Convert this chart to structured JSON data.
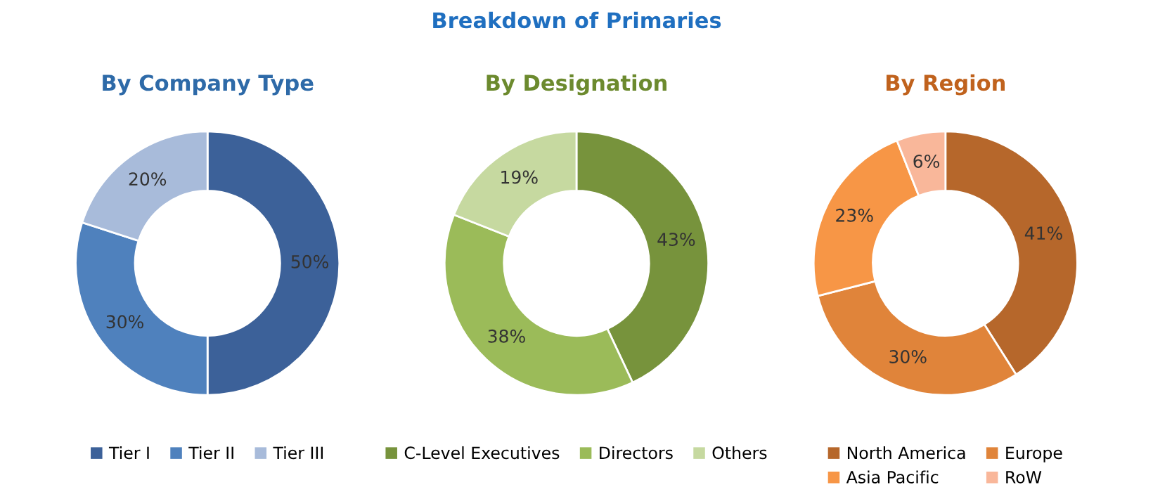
{
  "chart_data": [
    {
      "type": "donut",
      "title": "By Company Type",
      "annotations": [
        "Breakdown of Primaries"
      ],
      "categories": [
        "Tier I",
        "Tier II",
        "Tier III"
      ],
      "values": [
        50,
        30,
        20
      ],
      "value_labels": [
        "50%",
        "30%",
        "20%"
      ],
      "colors": [
        "#3c6199",
        "#4f81bd",
        "#a8bbda"
      ],
      "legend": "bottom"
    },
    {
      "type": "donut",
      "title": "By Designation",
      "categories": [
        "C-Level Executives",
        "Directors",
        "Others"
      ],
      "values": [
        43,
        38,
        19
      ],
      "value_labels": [
        "43%",
        "38%",
        "19%"
      ],
      "colors": [
        "#77933c",
        "#9bbb59",
        "#c6d9a0"
      ],
      "legend": "bottom"
    },
    {
      "type": "donut",
      "title": "By Region",
      "categories": [
        "North America",
        "Europe",
        "Asia Pacific",
        "RoW"
      ],
      "values": [
        41,
        30,
        23,
        6
      ],
      "value_labels": [
        "41%",
        "30%",
        "23%",
        "6%"
      ],
      "colors": [
        "#b6672b",
        "#e0843a",
        "#f79646",
        "#f9b79a"
      ],
      "legend": "bottom"
    }
  ]
}
